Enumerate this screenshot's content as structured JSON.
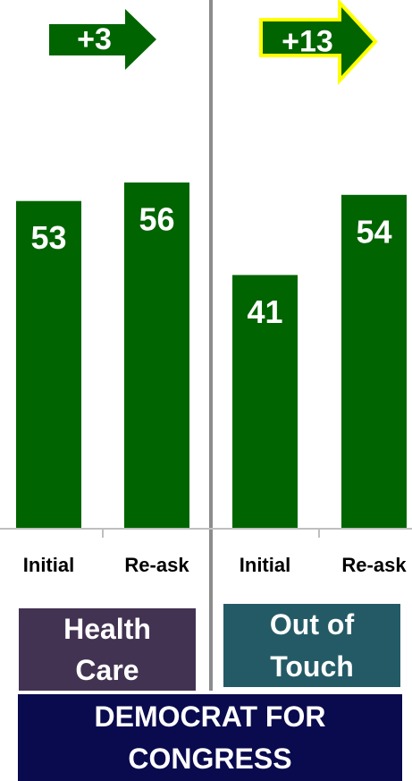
{
  "chart_data": [
    {
      "type": "bar",
      "categories": [
        "Initial",
        "Re-ask"
      ],
      "values": [
        53,
        56
      ],
      "color": "#006400",
      "ylim": [
        0,
        85.6
      ],
      "annotation": "+3",
      "highlight": false,
      "group_label": "Health Care",
      "group_color": "#433352"
    },
    {
      "type": "bar",
      "categories": [
        "Initial",
        "Re-ask"
      ],
      "values": [
        41,
        54
      ],
      "color": "#006400",
      "ylim": [
        0,
        85.6
      ],
      "annotation": "+13",
      "highlight": true,
      "group_label": "Out of Touch",
      "group_color": "#245a66"
    }
  ],
  "footer": "DEMOCRAT FOR CONGRESS"
}
